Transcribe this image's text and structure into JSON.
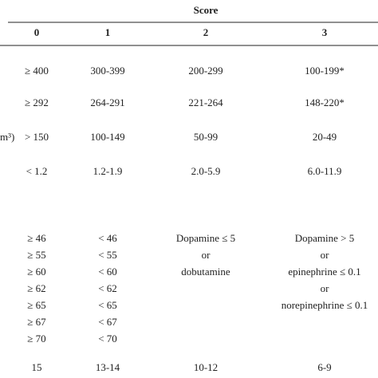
{
  "header": {
    "title": "Score",
    "columns": [
      "0",
      "1",
      "2",
      "3"
    ]
  },
  "table": {
    "rows": [
      {
        "cells": [
          [
            "≥ 400"
          ],
          [
            "300-399"
          ],
          [
            "200-299"
          ],
          [
            "100-199*"
          ]
        ]
      },
      {
        "cells": [
          [
            "≥ 292"
          ],
          [
            "264-291"
          ],
          [
            "221-264"
          ],
          [
            "148-220*"
          ]
        ]
      },
      {
        "label_fragment": "m³)",
        "cells": [
          [
            "> 150"
          ],
          [
            "100-149"
          ],
          [
            "50-99"
          ],
          [
            "20-49"
          ]
        ]
      },
      {
        "cells": [
          [
            "< 1.2"
          ],
          [
            "1.2-1.9"
          ],
          [
            "2.0-5.9"
          ],
          [
            "6.0-11.9"
          ]
        ]
      },
      {
        "cells": [
          [
            "≥ 46",
            "≥ 55",
            "≥ 60",
            "≥ 62",
            "≥ 65",
            "≥ 67",
            "≥ 70"
          ],
          [
            "< 46",
            "< 55",
            "< 60",
            "< 62",
            "< 65",
            "< 67",
            "< 70"
          ],
          [
            "Dopamine ≤ 5",
            "or",
            "dobutamine"
          ],
          [
            "Dopamine > 5",
            "or",
            "epinephrine ≤ 0.1",
            "or",
            "norepinephrine ≤ 0.1"
          ]
        ]
      },
      {
        "cells": [
          [
            "15"
          ],
          [
            "13-14"
          ],
          [
            "10-12"
          ],
          [
            "6-9"
          ]
        ]
      }
    ]
  }
}
